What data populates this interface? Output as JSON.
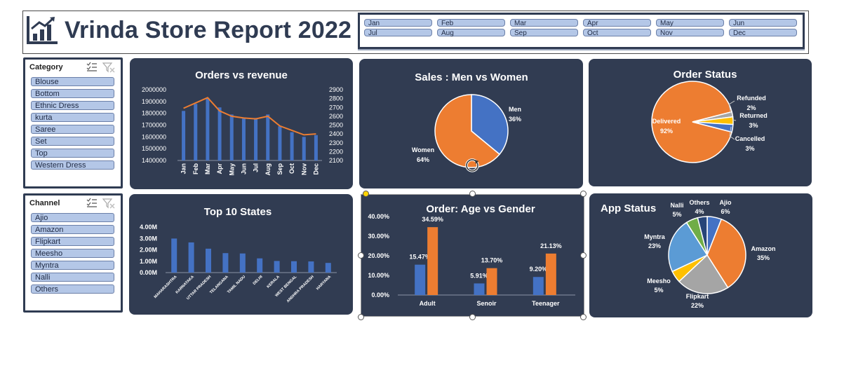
{
  "header": {
    "title": "Vrinda Store Report 2022",
    "months": [
      "Jan",
      "Feb",
      "Mar",
      "Apr",
      "May",
      "Jun",
      "Jul",
      "Aug",
      "Sep",
      "Oct",
      "Nov",
      "Dec"
    ]
  },
  "category_slicer": {
    "title": "Category",
    "items": [
      "Blouse",
      "Bottom",
      "Ethnic Dress",
      "kurta",
      "Saree",
      "Set",
      "Top",
      "Western Dress"
    ]
  },
  "channel_slicer": {
    "title": "Channel",
    "items": [
      "Ajio",
      "Amazon",
      "Flipkart",
      "Meesho",
      "Myntra",
      "Nalli",
      "Others"
    ]
  },
  "colors": {
    "panel": "#313c52",
    "blue": "#4472c4",
    "orange": "#ed7d31",
    "gray": "#a5a5a5",
    "yellow": "#ffc000",
    "lightblue": "#5b9bd5",
    "green": "#70ad47",
    "slicer_button": "#b4c7e7"
  },
  "chart_data": [
    {
      "id": "orders_vs_revenue",
      "type": "bar",
      "title": "Orders vs revenue",
      "categories": [
        "Jan",
        "Feb",
        "Mar",
        "Apr",
        "May",
        "Jun",
        "Jul",
        "Aug",
        "Sep",
        "Oct",
        "Nov",
        "Dec"
      ],
      "series": [
        {
          "type": "bar",
          "axis": "left",
          "values": [
            1820000,
            1880000,
            1930000,
            1850000,
            1790000,
            1755000,
            1760000,
            1790000,
            1690000,
            1640000,
            1600000,
            1615000
          ]
        },
        {
          "type": "line",
          "axis": "right",
          "values": [
            2690,
            2750,
            2810,
            2660,
            2600,
            2580,
            2570,
            2600,
            2490,
            2440,
            2390,
            2400
          ]
        }
      ],
      "y_left": {
        "ticks": [
          "2000000",
          "1900000",
          "1800000",
          "1700000",
          "1600000",
          "1500000",
          "1400000"
        ],
        "min": 1400000,
        "max": 2000000
      },
      "y_right": {
        "ticks": [
          "2900",
          "2800",
          "2700",
          "2600",
          "2500",
          "2400",
          "2300",
          "2200",
          "2100"
        ],
        "min": 2100,
        "max": 2900
      }
    },
    {
      "id": "men_vs_women",
      "type": "pie",
      "title": "Sales : Men vs Women",
      "slices": [
        {
          "label": "Men",
          "value": 36,
          "display": "36%"
        },
        {
          "label": "Women",
          "value": 64,
          "display": "64%"
        }
      ]
    },
    {
      "id": "order_status",
      "type": "pie",
      "title": "Order Status",
      "slices": [
        {
          "label": "Delivered",
          "value": 92,
          "display": "92%"
        },
        {
          "label": "Refunded",
          "value": 2,
          "display": "2%"
        },
        {
          "label": "Returned",
          "value": 3,
          "display": "3%"
        },
        {
          "label": "Cancelled",
          "value": 3,
          "display": "3%"
        }
      ]
    },
    {
      "id": "top_states",
      "type": "bar",
      "title": "Top 10 States",
      "categories": [
        "MAHARASHTRA",
        "KARNATAKA",
        "UTTAR PRADESH",
        "TELANGANA",
        "TAMIL NADU",
        "DELHI",
        "KERALA",
        "WEST BENGAL",
        "ANDHRA PRADESH",
        "HARYANA"
      ],
      "values": [
        2.99,
        2.65,
        2.1,
        1.71,
        1.68,
        1.25,
        1.02,
        1.0,
        0.98,
        0.85
      ],
      "y_ticks": [
        "4.00M",
        "3.00M",
        "2.00M",
        "1.00M",
        "0.00M"
      ],
      "ylim": [
        0,
        4
      ]
    },
    {
      "id": "age_vs_gender",
      "type": "bar",
      "title": "Order: Age vs Gender",
      "categories": [
        "Adult",
        "Senoir",
        "Teenager"
      ],
      "series": [
        {
          "values": [
            15.47,
            5.91,
            9.2
          ],
          "labels": [
            "15.47%",
            "5.91%",
            "9.20%"
          ]
        },
        {
          "values": [
            34.59,
            13.7,
            21.13
          ],
          "labels": [
            "34.59%",
            "13.70%",
            "21.13%"
          ]
        }
      ],
      "y_ticks": [
        "40.00%",
        "30.00%",
        "20.00%",
        "10.00%",
        "0.00%"
      ],
      "ylim": [
        0,
        40
      ]
    },
    {
      "id": "app_status",
      "type": "pie",
      "title": "App Status",
      "slices": [
        {
          "label": "Ajio",
          "value": 6,
          "display": "6%"
        },
        {
          "label": "Amazon",
          "value": 35,
          "display": "35%"
        },
        {
          "label": "Flipkart",
          "value": 22,
          "display": "22%"
        },
        {
          "label": "Meesho",
          "value": 5,
          "display": "5%"
        },
        {
          "label": "Myntra",
          "value": 23,
          "display": "23%"
        },
        {
          "label": "Nalli",
          "value": 5,
          "display": "5%"
        },
        {
          "label": "Others",
          "value": 4,
          "display": "4%"
        }
      ]
    }
  ]
}
